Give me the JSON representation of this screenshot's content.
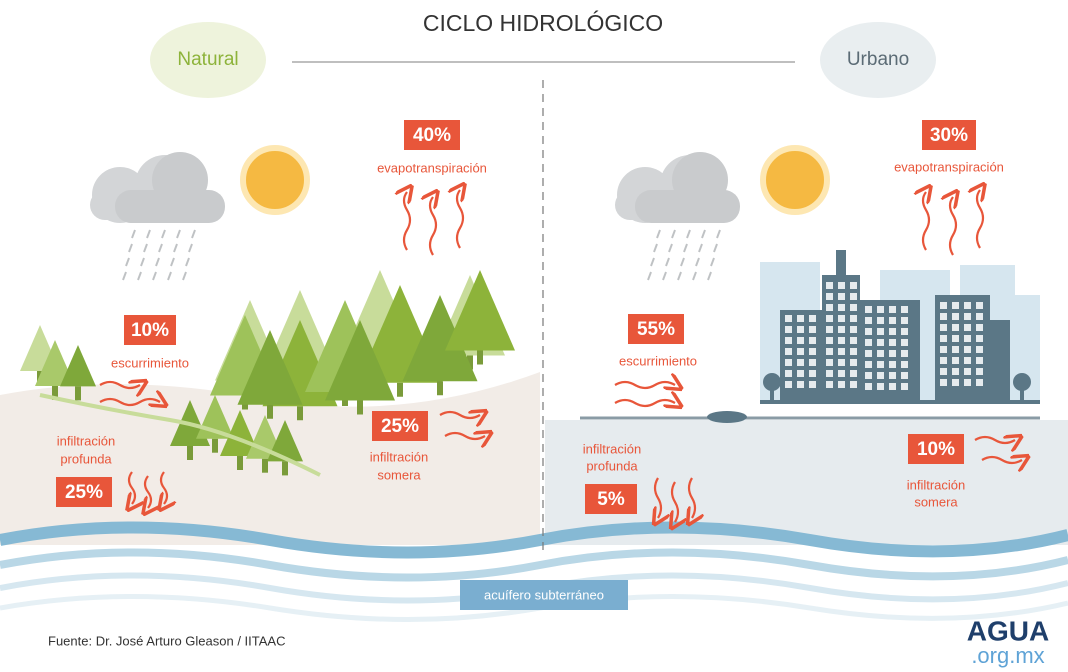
{
  "title": "CICLO HIDROLÓGICO",
  "natural": {
    "label": "Natural",
    "evapotranspiration": {
      "percent": "40%",
      "label": "evapotranspiración"
    },
    "runoff": {
      "percent": "10%",
      "label": "escurrimiento"
    },
    "deep_infiltration": {
      "percent": "25%",
      "label": [
        "infiltración",
        "profunda"
      ]
    },
    "shallow_infiltration": {
      "percent": "25%",
      "label": [
        "infiltración",
        "somera"
      ]
    }
  },
  "urban": {
    "label": "Urbano",
    "evapotranspiration": {
      "percent": "30%",
      "label": "evapotranspiración"
    },
    "runoff": {
      "percent": "55%",
      "label": "escurrimiento"
    },
    "deep_infiltration": {
      "percent": "5%",
      "label": [
        "infiltración",
        "profunda"
      ]
    },
    "shallow_infiltration": {
      "percent": "10%",
      "label": [
        "infiltración",
        "somera"
      ]
    }
  },
  "aquifer": "acuífero subterráneo",
  "source": "Fuente: Dr. José Arturo Gleason / IITAAC",
  "logo": {
    "top": "AGUA",
    "bottom": ".org.mx"
  }
}
